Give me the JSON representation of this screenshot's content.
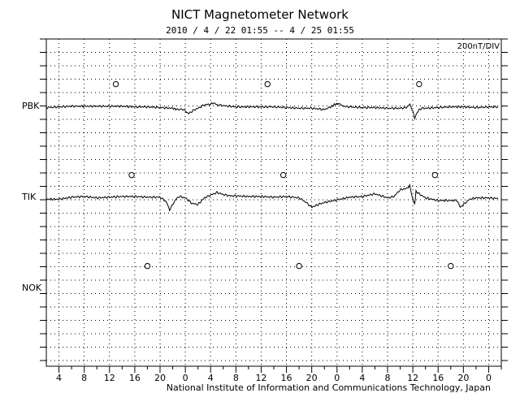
{
  "chart_data": {
    "type": "line",
    "title": "NICT Magnetometer Network",
    "subtitle": "2010 / 4 / 22   01:55 --  4 / 25   01:55",
    "scale": "200nT/DIV",
    "x_tick_labels": [
      "4",
      "8",
      "12",
      "16",
      "20",
      "0",
      "4",
      "8",
      "12",
      "16",
      "20",
      "0",
      "4",
      "8",
      "12",
      "16",
      "20",
      "0"
    ],
    "x_range_hours": [
      0,
      72
    ],
    "grid": true,
    "series": [
      {
        "name": "PBK",
        "x": [
          0,
          2,
          4,
          6,
          8,
          10,
          12,
          14,
          16,
          18,
          20,
          20.7,
          21.5,
          22,
          22.5,
          23,
          23.5,
          24,
          25,
          26,
          26.5,
          27,
          28,
          29,
          30,
          32,
          34,
          36,
          38,
          40,
          42,
          44,
          45,
          45.7,
          46.3,
          47,
          48,
          50,
          52,
          54,
          56,
          57,
          57.5,
          58,
          58.3,
          58.6,
          59,
          59.5,
          60,
          62,
          64,
          66,
          68,
          70,
          71.5
        ],
        "y": [
          -0.15,
          -0.1,
          -0.05,
          -0.05,
          -0.05,
          -0.05,
          -0.05,
          -0.1,
          -0.1,
          -0.15,
          -0.2,
          -0.3,
          -0.25,
          -0.4,
          -0.6,
          -0.45,
          -0.3,
          -0.2,
          0.05,
          0.1,
          0.2,
          0.05,
          0.0,
          -0.05,
          -0.1,
          -0.1,
          -0.1,
          -0.1,
          -0.15,
          -0.2,
          -0.2,
          -0.3,
          -0.1,
          0.1,
          0.15,
          -0.05,
          -0.1,
          -0.15,
          -0.15,
          -0.2,
          -0.2,
          -0.15,
          0.1,
          -0.4,
          -1.0,
          -0.6,
          -0.3,
          -0.2,
          -0.2,
          -0.15,
          -0.1,
          -0.1,
          -0.15,
          -0.1,
          -0.1
        ],
        "symbol_hours": [
          11,
          35,
          59
        ]
      },
      {
        "name": "TIK",
        "x": [
          0,
          2,
          4,
          6,
          8,
          10,
          12,
          14,
          16,
          17,
          18,
          19,
          19.5,
          20,
          20.5,
          21,
          22,
          23,
          24,
          25,
          26,
          27,
          28,
          29,
          30,
          32,
          34,
          36,
          38,
          40,
          41,
          42,
          43,
          44,
          46,
          48,
          50,
          52,
          54,
          55,
          56,
          57,
          57.5,
          58,
          58.3,
          58.5,
          59,
          60,
          61,
          62,
          64,
          65,
          65.5,
          66,
          67,
          68,
          70,
          71.5
        ],
        "y": [
          -0.2,
          -0.2,
          -0.05,
          0.0,
          -0.1,
          -0.05,
          0.0,
          0.0,
          -0.05,
          -0.05,
          -0.05,
          -0.4,
          -1.0,
          -0.6,
          -0.2,
          0.0,
          -0.1,
          -0.5,
          -0.6,
          -0.1,
          0.1,
          0.3,
          0.15,
          0.05,
          0.05,
          0.0,
          0.0,
          -0.05,
          0.0,
          -0.1,
          -0.4,
          -0.8,
          -0.6,
          -0.45,
          -0.25,
          -0.05,
          0.0,
          0.2,
          -0.1,
          0.0,
          0.5,
          0.6,
          0.8,
          -0.2,
          -0.6,
          0.4,
          0.2,
          -0.1,
          -0.2,
          -0.3,
          -0.3,
          -0.3,
          -0.8,
          -0.6,
          -0.2,
          -0.1,
          -0.1,
          -0.15
        ],
        "symbol_hours": [
          13.5,
          37.5,
          61.5
        ]
      },
      {
        "name": "NOK",
        "x": [],
        "y": [],
        "symbol_hours": [
          16,
          40,
          64
        ]
      }
    ]
  },
  "footer": "National Institute of Information and Communications Technology, Japan"
}
